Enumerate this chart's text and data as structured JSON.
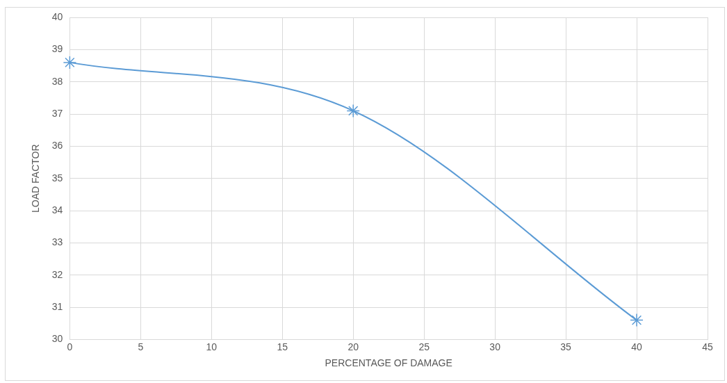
{
  "chart_data": {
    "type": "line",
    "xlabel": "PERCENTAGE OF DAMAGE",
    "ylabel": "LOAD FACTOR",
    "x": [
      0,
      20,
      40
    ],
    "series": [
      {
        "color": "#5b9bd5",
        "values": [
          38.6,
          37.1,
          30.6
        ]
      }
    ],
    "xlim": [
      0,
      45
    ],
    "xticks": [
      0,
      5,
      10,
      15,
      20,
      25,
      30,
      35,
      40,
      45
    ],
    "ylim": [
      30,
      40
    ],
    "yticks": [
      30,
      31,
      32,
      33,
      34,
      35,
      36,
      37,
      38,
      39,
      40
    ],
    "grid": true,
    "legend": false,
    "marker": "cross",
    "line_style": "solid"
  }
}
